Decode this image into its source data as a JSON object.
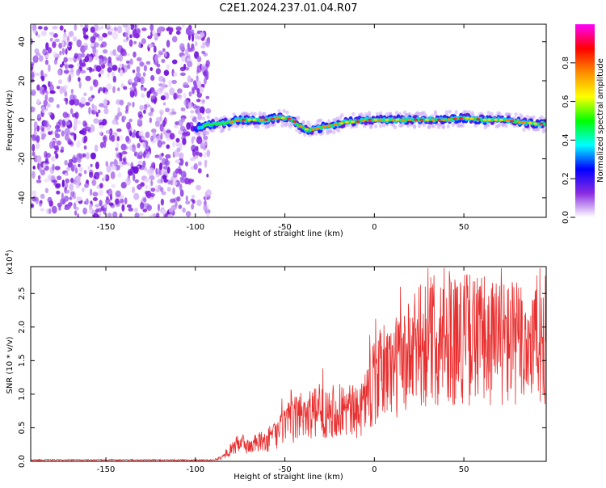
{
  "title": "C2E1.2024.237.01.04.R07",
  "chart_data": [
    {
      "type": "heatmap",
      "xlabel": "Height of straight line (km)",
      "ylabel": "Frequency (Hz)",
      "xlim": [
        -192,
        96
      ],
      "ylim": [
        -50,
        49
      ],
      "x_ticks": [
        -150,
        -100,
        -50,
        0,
        50
      ],
      "y_ticks": [
        -40,
        -20,
        0,
        20,
        40
      ],
      "noise_region_x": [
        -192,
        -96
      ],
      "signal_trace": [
        [
          -100,
          -4
        ],
        [
          -95,
          -3
        ],
        [
          -90,
          -2
        ],
        [
          -85,
          -2
        ],
        [
          -80,
          -1
        ],
        [
          -75,
          0
        ],
        [
          -70,
          0
        ],
        [
          -65,
          0
        ],
        [
          -60,
          0
        ],
        [
          -55,
          1
        ],
        [
          -50,
          1
        ],
        [
          -46,
          0
        ],
        [
          -42,
          -3
        ],
        [
          -38,
          -5
        ],
        [
          -34,
          -5
        ],
        [
          -30,
          -4
        ],
        [
          -25,
          -3
        ],
        [
          -20,
          -2
        ],
        [
          -15,
          -1
        ],
        [
          -10,
          -1
        ],
        [
          -5,
          0
        ],
        [
          0,
          0
        ],
        [
          10,
          0
        ],
        [
          20,
          0
        ],
        [
          30,
          0
        ],
        [
          40,
          0
        ],
        [
          50,
          1
        ],
        [
          60,
          0
        ],
        [
          70,
          0
        ],
        [
          80,
          -1
        ],
        [
          90,
          -2
        ],
        [
          96,
          -2
        ]
      ],
      "colorbar": {
        "label": "Normalized spectral amplitude",
        "range": [
          0,
          1
        ],
        "ticks": [
          "0.0",
          "0.2",
          "0.4",
          "0.6",
          "0.8"
        ],
        "colors": [
          "#ffffff",
          "#8a2be2",
          "#0000ff",
          "#00ffff",
          "#00ff00",
          "#ffff00",
          "#ff8c00",
          "#ff0000",
          "#ff00ff"
        ]
      },
      "grid": false
    },
    {
      "type": "line",
      "xlabel": "Height of straight line (km)",
      "ylabel": "SNR (10 * v/v)",
      "y_exponent_label": "(x10",
      "y_exponent_power": "4",
      "y_exponent_close": ")",
      "xlim": [
        -192,
        96
      ],
      "ylim": [
        0,
        2.9
      ],
      "x_ticks": [
        -150,
        -100,
        -50,
        0,
        50
      ],
      "y_ticks": [
        "0.0",
        "0.5",
        "1.0",
        "1.5",
        "2.0",
        "2.5"
      ],
      "y_tick_values": [
        0,
        0.5,
        1.0,
        1.5,
        2.0,
        2.5
      ],
      "color": "#e83030",
      "envelope": [
        [
          -192,
          0.02
        ],
        [
          -90,
          0.02
        ],
        [
          -85,
          0.06
        ],
        [
          -80,
          0.18
        ],
        [
          -75,
          0.28
        ],
        [
          -70,
          0.22
        ],
        [
          -65,
          0.28
        ],
        [
          -60,
          0.3
        ],
        [
          -55,
          0.4
        ],
        [
          -50,
          0.55
        ],
        [
          -45,
          0.6
        ],
        [
          -40,
          0.75
        ],
        [
          -35,
          0.7
        ],
        [
          -30,
          0.72
        ],
        [
          -25,
          0.8
        ],
        [
          -20,
          0.75
        ],
        [
          -15,
          0.78
        ],
        [
          -10,
          0.7
        ],
        [
          -5,
          0.95
        ],
        [
          0,
          1.15
        ],
        [
          5,
          1.35
        ],
        [
          10,
          1.4
        ],
        [
          15,
          1.45
        ],
        [
          20,
          1.55
        ],
        [
          25,
          1.7
        ],
        [
          30,
          1.8
        ],
        [
          40,
          1.85
        ],
        [
          50,
          1.85
        ],
        [
          60,
          1.8
        ],
        [
          70,
          1.8
        ],
        [
          80,
          1.75
        ],
        [
          90,
          1.8
        ],
        [
          96,
          1.8
        ]
      ]
    }
  ],
  "colors": {
    "axis": "#000000",
    "trace": "#e83030",
    "noise": "#8a2be2"
  }
}
